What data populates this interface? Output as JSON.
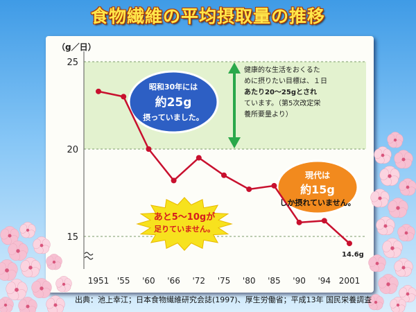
{
  "title": "食物繊維の平均摂取量の推移",
  "source": "出典：池上幸江；日本食物繊維研究会誌(1997)、厚生労働省；平成13年 国民栄養調査",
  "chart_data": {
    "type": "line",
    "ylabel": "（g／日）",
    "x": [
      "1951",
      "'55",
      "'60",
      "'66",
      "'72",
      "'75",
      "'80",
      "'85",
      "'90",
      "'94",
      "2001"
    ],
    "values": [
      23.3,
      23.0,
      20.0,
      18.2,
      19.5,
      18.5,
      17.7,
      17.9,
      15.8,
      15.9,
      14.6
    ],
    "yticks": [
      15,
      20,
      25
    ],
    "ylim": [
      13.2,
      25.5
    ],
    "target_range": [
      20,
      25
    ],
    "end_label": "14.6g",
    "line_color": "#c8102e",
    "annotations": {
      "past": [
        "昭和30年には",
        "約25g",
        "摂っていました。"
      ],
      "target": [
        "健康的な生活をおくるた",
        "めに摂りたい目標は、１日",
        "あたり20～25gとされ",
        "ています。（第5次改定栄",
        "養所要量より）"
      ],
      "current": [
        "現代は",
        "約15g",
        "しか摂れていません。"
      ],
      "shortfall": [
        "あと5～10gが",
        "足りていません。"
      ]
    }
  }
}
